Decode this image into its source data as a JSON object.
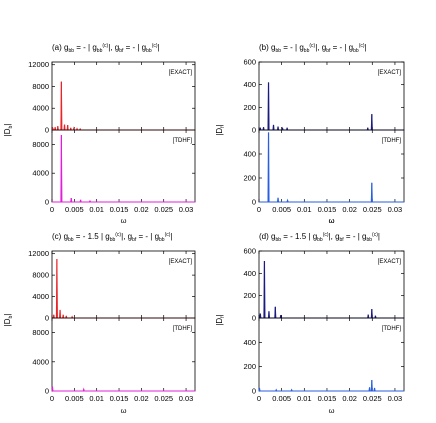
{
  "chart_data": [
    {
      "type": "line",
      "panel_label": "(a)",
      "title": {
        "coupling": "-",
        "multiplier_bb": "",
        "multiplier_bf": ""
      },
      "title_text": {
        "g_bb": "g",
        "g_bb_sub": "bb",
        "g_bf": "g",
        "g_bf_sub": "bf",
        "gc": "g",
        "gc_sub": "bb",
        "gc_sup": "(c)"
      },
      "ylabel": "|D",
      "ylabel_sub": "b",
      "ylabel_close": "|",
      "xlabel": "ω",
      "xlim": [
        0,
        0.032
      ],
      "xticks": [
        "0",
        "0.005",
        "0.01",
        "0.015",
        "0.02",
        "0.025",
        "0.03"
      ],
      "xtick_values": [
        0,
        0.005,
        0.01,
        0.015,
        0.02,
        0.025,
        0.03
      ],
      "subplots": [
        {
          "method": "[EXACT]",
          "color": "#e8262a",
          "ylim": [
            0,
            12500
          ],
          "yticks": [
            "0",
            "4000",
            "8000",
            "12000"
          ],
          "ytick_values": [
            0,
            4000,
            8000,
            12000
          ],
          "peaks": [
            {
              "x": 0.0002,
              "y": 300
            },
            {
              "x": 0.0007,
              "y": 500
            },
            {
              "x": 0.0013,
              "y": 700
            },
            {
              "x": 0.0021,
              "y": 8900
            },
            {
              "x": 0.0028,
              "y": 1000
            },
            {
              "x": 0.0035,
              "y": 900
            },
            {
              "x": 0.0042,
              "y": 400
            },
            {
              "x": 0.0049,
              "y": 350
            },
            {
              "x": 0.0056,
              "y": 250
            },
            {
              "x": 0.0063,
              "y": 200
            }
          ]
        },
        {
          "method": "[TDHF]",
          "color": "#e020d8",
          "ylim": [
            0,
            10000
          ],
          "yticks": [
            "0",
            "4000",
            "8000"
          ],
          "ytick_values": [
            0,
            4000,
            8000
          ],
          "peaks": [
            {
              "x": 0.0021,
              "y": 9300
            },
            {
              "x": 0.0043,
              "y": 550
            },
            {
              "x": 0.0064,
              "y": 300
            },
            {
              "x": 0.0085,
              "y": 150
            }
          ]
        }
      ]
    },
    {
      "type": "line",
      "panel_label": "(b)",
      "title_text": {
        "g_bb": "g",
        "g_bb_sub": "bb",
        "g_bf": "g",
        "g_bf_sub": "bf",
        "gc": "g",
        "gc_sub": "bb",
        "gc_sup": "(c)"
      },
      "ylabel": "|D",
      "ylabel_sub": "f",
      "ylabel_close": "|",
      "xlabel": "ω",
      "xlim": [
        0,
        0.032
      ],
      "xticks": [
        "0",
        "0.005",
        "0.01",
        "0.015",
        "0.02",
        "0.025",
        "0.03"
      ],
      "xtick_values": [
        0,
        0.005,
        0.01,
        0.015,
        0.02,
        0.025,
        0.03
      ],
      "subplots": [
        {
          "method": "[EXACT]",
          "color": "#1a1a80",
          "ylim": [
            0,
            600
          ],
          "yticks": [
            "0",
            "200",
            "400",
            "600"
          ],
          "ytick_values": [
            0,
            200,
            400,
            600
          ],
          "peaks": [
            {
              "x": 0.0003,
              "y": 20
            },
            {
              "x": 0.001,
              "y": 25
            },
            {
              "x": 0.0021,
              "y": 420
            },
            {
              "x": 0.0032,
              "y": 45
            },
            {
              "x": 0.0042,
              "y": 30
            },
            {
              "x": 0.0052,
              "y": 15
            },
            {
              "x": 0.0062,
              "y": 20
            },
            {
              "x": 0.024,
              "y": 20
            },
            {
              "x": 0.0249,
              "y": 140
            }
          ]
        },
        {
          "method": "[TDHF]",
          "color": "#2a5ee0",
          "ylim": [
            0,
            600
          ],
          "yticks": [
            "0",
            "200",
            "400"
          ],
          "ytick_values": [
            0,
            200,
            400
          ],
          "peaks": [
            {
              "x": 0.0021,
              "y": 580
            },
            {
              "x": 0.0042,
              "y": 35
            },
            {
              "x": 0.0063,
              "y": 15
            },
            {
              "x": 0.0249,
              "y": 160
            }
          ]
        }
      ]
    },
    {
      "type": "line",
      "panel_label": "(c)",
      "title_text": {
        "g_bb": "g",
        "g_bb_sub": "bb",
        "mult": "1.5",
        "g_bf": "g",
        "g_bf_sub": "bf",
        "gc": "g",
        "gc_sub": "bb",
        "gc_sup": "(c)"
      },
      "ylabel": "|D",
      "ylabel_sub": "b",
      "ylabel_close": "|",
      "xlabel": "ω",
      "xlim": [
        0,
        0.032
      ],
      "xticks": [
        "0",
        "0.005",
        "0.01",
        "0.015",
        "0.02",
        "0.025",
        "0.03"
      ],
      "xtick_values": [
        0,
        0.005,
        0.01,
        0.015,
        0.02,
        0.025,
        0.03
      ],
      "subplots": [
        {
          "method": "[EXACT]",
          "color": "#e8262a",
          "ylim": [
            0,
            12500
          ],
          "yticks": [
            "0",
            "4000",
            "8000",
            "12000"
          ],
          "ytick_values": [
            0,
            4000,
            8000,
            12000
          ],
          "peaks": [
            {
              "x": 0.0004,
              "y": 600
            },
            {
              "x": 0.0011,
              "y": 11000
            },
            {
              "x": 0.0018,
              "y": 1500
            },
            {
              "x": 0.0025,
              "y": 600
            },
            {
              "x": 0.0032,
              "y": 400
            },
            {
              "x": 0.0045,
              "y": 250
            }
          ]
        },
        {
          "method": "[TDHF]",
          "color": "#e020d8",
          "ylim": [
            0,
            10000
          ],
          "yticks": [
            "0",
            "4000",
            "8000"
          ],
          "ytick_values": [
            0,
            4000,
            8000
          ],
          "peaks": [
            {
              "x": 0.0001,
              "y": 600
            },
            {
              "x": 0.0071,
              "y": 250
            }
          ]
        }
      ]
    },
    {
      "type": "line",
      "panel_label": "(d)",
      "title_text": {
        "g_bb": "g",
        "g_bb_sub": "bb",
        "mult": "1.5",
        "g_bf": "g",
        "g_bf_sub": "bf",
        "gc": "g",
        "gc_sub": "bb",
        "gc_sup": "(c)"
      },
      "ylabel": "|D",
      "ylabel_sub": "f",
      "ylabel_close": "|",
      "xlabel": "ω",
      "xlim": [
        0,
        0.032
      ],
      "xticks": [
        "0",
        "0.005",
        "0.01",
        "0.015",
        "0.02",
        "0.025",
        "0.03"
      ],
      "xtick_values": [
        0,
        0.005,
        0.01,
        0.015,
        0.02,
        0.025,
        0.03
      ],
      "subplots": [
        {
          "method": "[EXACT]",
          "color": "#1a1a80",
          "ylim": [
            0,
            600
          ],
          "yticks": [
            "0",
            "200",
            "400",
            "600"
          ],
          "ytick_values": [
            0,
            200,
            400,
            600
          ],
          "peaks": [
            {
              "x": 0.0003,
              "y": 40
            },
            {
              "x": 0.0012,
              "y": 510
            },
            {
              "x": 0.0022,
              "y": 60
            },
            {
              "x": 0.0036,
              "y": 100
            },
            {
              "x": 0.0048,
              "y": 25
            },
            {
              "x": 0.0241,
              "y": 30
            },
            {
              "x": 0.0249,
              "y": 80
            },
            {
              "x": 0.0257,
              "y": 20
            }
          ]
        },
        {
          "method": "[TDHF]",
          "color": "#2a5ee0",
          "ylim": [
            0,
            600
          ],
          "yticks": [
            "0",
            "200",
            "400"
          ],
          "ytick_values": [
            0,
            200,
            400
          ],
          "peaks": [
            {
              "x": 0.0001,
              "y": 25
            },
            {
              "x": 0.0038,
              "y": 10
            },
            {
              "x": 0.0072,
              "y": 10
            },
            {
              "x": 0.0244,
              "y": 30
            },
            {
              "x": 0.0249,
              "y": 90
            },
            {
              "x": 0.0255,
              "y": 25
            }
          ]
        }
      ]
    }
  ]
}
